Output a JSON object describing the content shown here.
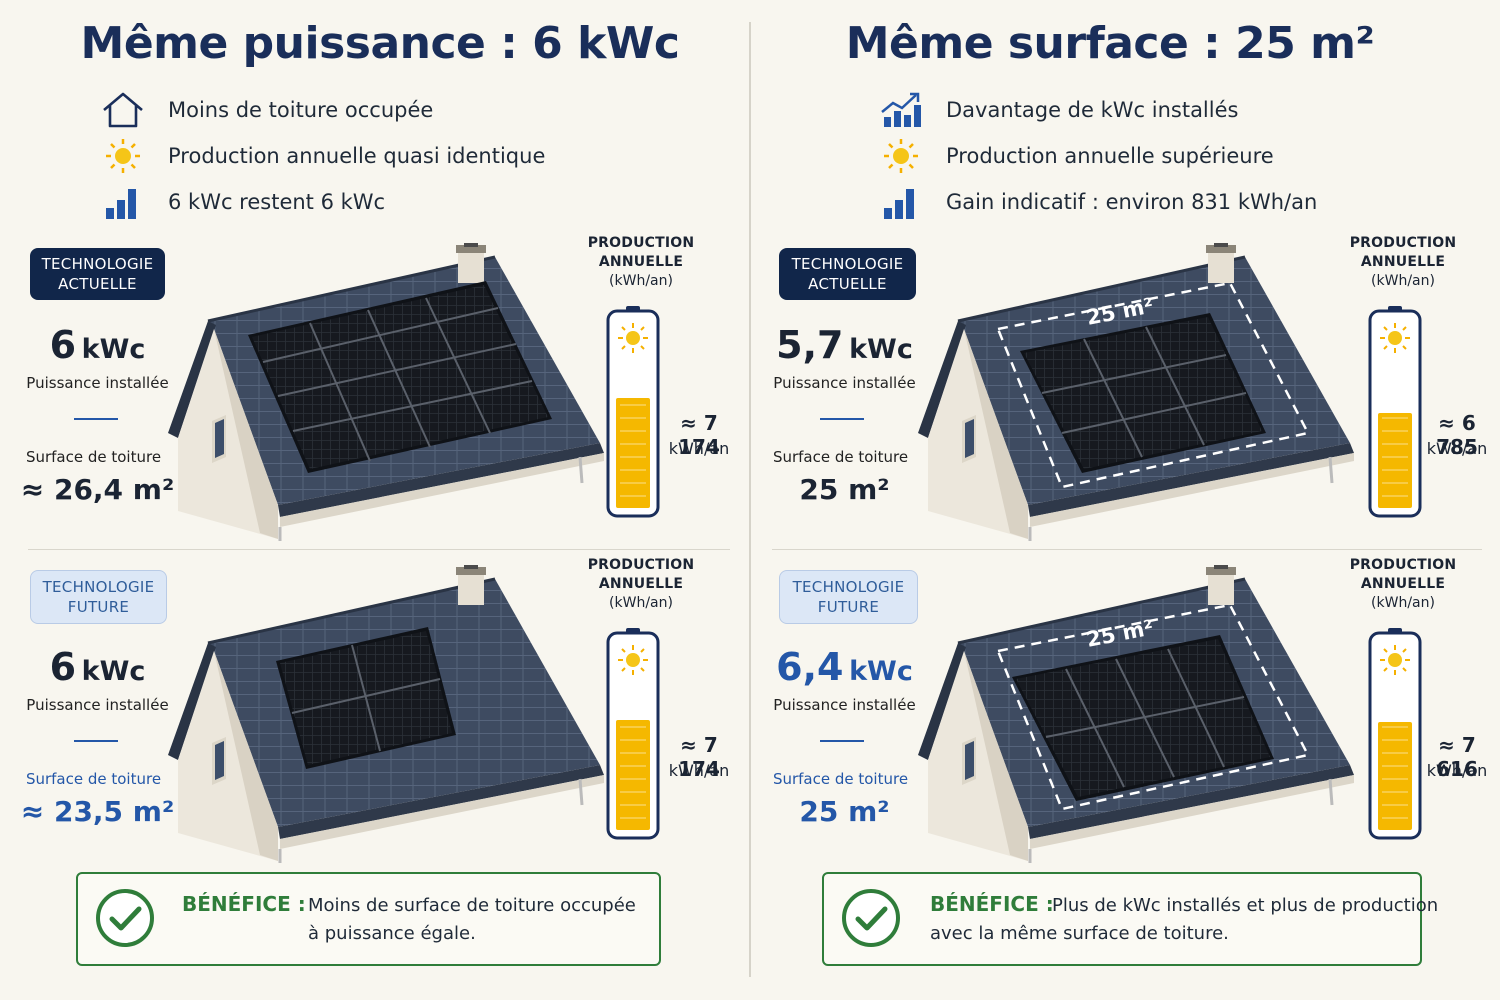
{
  "colors": {
    "navy": "#1a2e5a",
    "accent_blue": "#2457a8",
    "green": "#2f7d3a",
    "battery": "#f5b800",
    "roof": "#3d4a5f",
    "panel": "#15181d"
  },
  "left": {
    "title": "Même puissance : 6 kWc",
    "bullets": [
      {
        "icon": "house-outline-icon",
        "text": "Moins de toiture occupée"
      },
      {
        "icon": "sun-icon",
        "text": "Production annuelle quasi identique"
      },
      {
        "icon": "bar-chart-icon",
        "text": "6 kWc restent 6 kWc"
      }
    ],
    "sections": [
      {
        "badge_line1": "TECHNOLOGIE",
        "badge_line2": "ACTUELLE",
        "kwc_value": "6",
        "kwc_unit": "kWc",
        "power_label": "Puissance installée",
        "surface_label": "Surface de toiture",
        "surface_value": "≈ 26,4 m²",
        "prod_line1": "PRODUCTION",
        "prod_line2": "ANNUELLE",
        "prod_line3": "(kWh/an)",
        "prod_value": "≈ 7 174",
        "prod_unit": "kWh/an",
        "battery_fill": 0.73,
        "panels": 12
      },
      {
        "badge_line1": "TECHNOLOGIE",
        "badge_line2": "FUTURE",
        "kwc_value": "6",
        "kwc_unit": "kWc",
        "power_label": "Puissance installée",
        "surface_label": "Surface de toiture",
        "surface_value": "≈ 23,5 m²",
        "prod_line1": "PRODUCTION",
        "prod_line2": "ANNUELLE",
        "prod_line3": "(kWh/an)",
        "prod_value": "≈ 7 174",
        "prod_unit": "kWh/an",
        "battery_fill": 0.73,
        "panels": 4
      }
    ],
    "benefit": {
      "heading": "BÉNÉFICE :",
      "line1": "Moins de surface de toiture occupée",
      "line2": "à puissance égale."
    }
  },
  "right": {
    "title": "Même surface : 25 m²",
    "bullets": [
      {
        "icon": "growth-chart-icon",
        "text": "Davantage de kWc installés"
      },
      {
        "icon": "sun-icon",
        "text": "Production annuelle supérieure"
      },
      {
        "icon": "bar-chart-icon",
        "text": "Gain indicatif : environ 831 kWh/an"
      }
    ],
    "sections": [
      {
        "badge_line1": "TECHNOLOGIE",
        "badge_line2": "ACTUELLE",
        "kwc_value": "5,7",
        "kwc_unit": "kWc",
        "power_label": "Puissance installée",
        "surface_label": "Surface de toiture",
        "surface_value": "25 m²",
        "area_label": "25 m²",
        "prod_line1": "PRODUCTION",
        "prod_line2": "ANNUELLE",
        "prod_line3": "(kWh/an)",
        "prod_value": "≈ 6 785",
        "prod_unit": "kWh/an",
        "battery_fill": 0.63,
        "panels": 9
      },
      {
        "badge_line1": "TECHNOLOGIE",
        "badge_line2": "FUTURE",
        "kwc_value": "6,4",
        "kwc_unit": "kWc",
        "power_label": "Puissance installée",
        "surface_label": "Surface de toiture",
        "surface_value": "25 m²",
        "area_label": "25 m²",
        "prod_line1": "PRODUCTION",
        "prod_line2": "ANNUELLE",
        "prod_line3": "(kWh/an)",
        "prod_value": "≈ 7 616",
        "prod_unit": "kWh/an",
        "battery_fill": 0.72,
        "panels": 8
      }
    ],
    "benefit": {
      "heading": "BÉNÉFICE :",
      "line1": "Plus de kWc installés et plus de production",
      "line2": "avec la même surface de toiture."
    }
  }
}
